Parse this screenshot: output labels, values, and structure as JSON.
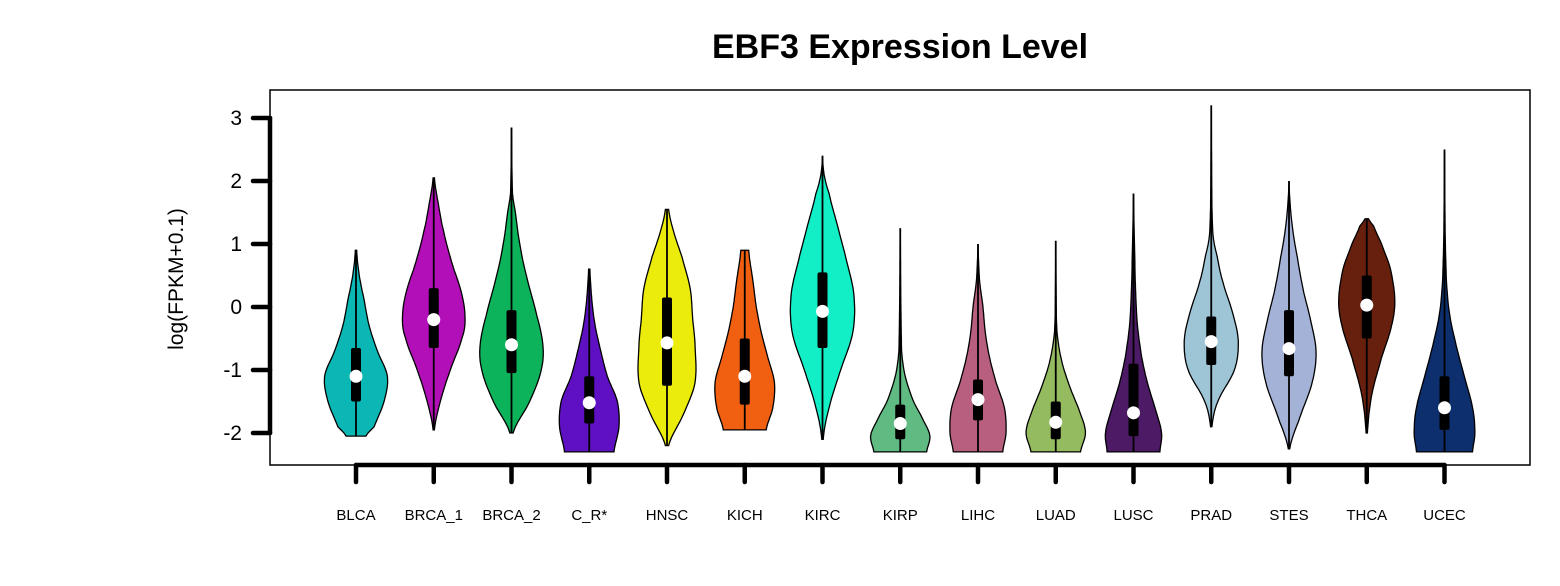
{
  "chart_data": {
    "type": "violin",
    "title": "EBF3 Expression Level",
    "xlabel": "",
    "ylabel": "log(FPKM+0.1)",
    "ylim": [
      -2.5,
      3.45
    ],
    "yticks": [
      -2,
      -1,
      0,
      1,
      2,
      3
    ],
    "grid": false,
    "legend": "none",
    "categories": [
      "BLCA",
      "BRCA_1",
      "BRCA_2",
      "C_R*",
      "HNSC",
      "KICH",
      "KIRC",
      "KIRP",
      "LIHC",
      "LUAD",
      "LUSC",
      "PRAD",
      "STES",
      "THCA",
      "UCEC"
    ],
    "series": [
      {
        "category": "BLCA",
        "color": "#0ab7b4",
        "min": -2.05,
        "max": 0.9,
        "q1": -1.5,
        "median": -1.1,
        "q3": -0.65,
        "whisker_low": -2.05,
        "whisker_high": 0.9,
        "density": [
          [
            -2.05,
            0.3
          ],
          [
            -1.9,
            0.55
          ],
          [
            -1.5,
            0.85
          ],
          [
            -1.1,
            0.95
          ],
          [
            -0.7,
            0.65
          ],
          [
            -0.3,
            0.4
          ],
          [
            0.1,
            0.25
          ],
          [
            0.5,
            0.1
          ],
          [
            0.9,
            0.02
          ]
        ]
      },
      {
        "category": "BRCA_1",
        "color": "#b30fb8",
        "min": -1.95,
        "max": 2.05,
        "q1": -0.65,
        "median": -0.2,
        "q3": 0.3,
        "whisker_low": -1.95,
        "whisker_high": 2.05,
        "density": [
          [
            -1.95,
            0.02
          ],
          [
            -1.5,
            0.2
          ],
          [
            -1.0,
            0.5
          ],
          [
            -0.5,
            0.85
          ],
          [
            -0.2,
            0.95
          ],
          [
            0.2,
            0.85
          ],
          [
            0.7,
            0.55
          ],
          [
            1.2,
            0.3
          ],
          [
            1.6,
            0.15
          ],
          [
            2.05,
            0.02
          ]
        ]
      },
      {
        "category": "BRCA_2",
        "color": "#0db35a",
        "min": -2.0,
        "max": 2.85,
        "q1": -1.05,
        "median": -0.6,
        "q3": -0.05,
        "whisker_low": -2.0,
        "whisker_high": 2.85,
        "density": [
          [
            -2.0,
            0.05
          ],
          [
            -1.5,
            0.55
          ],
          [
            -1.0,
            0.9
          ],
          [
            -0.6,
            0.95
          ],
          [
            -0.1,
            0.75
          ],
          [
            0.5,
            0.45
          ],
          [
            1.0,
            0.25
          ],
          [
            1.5,
            0.12
          ],
          [
            1.8,
            0.03
          ],
          [
            2.85,
            0.0
          ]
        ]
      },
      {
        "category": "C_R*",
        "color": "#5e10c2",
        "min": -2.3,
        "max": 0.6,
        "q1": -1.85,
        "median": -1.52,
        "q3": -1.1,
        "whisker_low": -2.3,
        "whisker_high": 0.6,
        "density": [
          [
            -2.3,
            0.75
          ],
          [
            -1.9,
            0.9
          ],
          [
            -1.5,
            0.85
          ],
          [
            -1.1,
            0.55
          ],
          [
            -0.7,
            0.35
          ],
          [
            -0.3,
            0.18
          ],
          [
            0.1,
            0.08
          ],
          [
            0.6,
            0.02
          ]
        ]
      },
      {
        "category": "HNSC",
        "color": "#ecec0c",
        "min": -2.2,
        "max": 1.55,
        "q1": -1.25,
        "median": -0.57,
        "q3": 0.15,
        "whisker_low": -2.2,
        "whisker_high": 1.55,
        "density": [
          [
            -2.2,
            0.05
          ],
          [
            -1.7,
            0.5
          ],
          [
            -1.2,
            0.85
          ],
          [
            -0.6,
            0.85
          ],
          [
            -0.2,
            0.78
          ],
          [
            0.3,
            0.7
          ],
          [
            0.8,
            0.45
          ],
          [
            1.2,
            0.2
          ],
          [
            1.55,
            0.05
          ]
        ]
      },
      {
        "category": "KICH",
        "color": "#f06010",
        "min": -1.95,
        "max": 0.9,
        "q1": -1.55,
        "median": -1.1,
        "q3": -0.5,
        "whisker_low": -1.95,
        "whisker_high": 0.9,
        "density": [
          [
            -1.95,
            0.65
          ],
          [
            -1.6,
            0.85
          ],
          [
            -1.2,
            0.9
          ],
          [
            -0.8,
            0.7
          ],
          [
            -0.4,
            0.5
          ],
          [
            0.0,
            0.35
          ],
          [
            0.4,
            0.25
          ],
          [
            0.9,
            0.12
          ]
        ]
      },
      {
        "category": "KIRC",
        "color": "#12eec6",
        "min": -2.1,
        "max": 2.4,
        "q1": -0.65,
        "median": -0.07,
        "q3": 0.55,
        "whisker_low": -2.1,
        "whisker_high": 2.4,
        "density": [
          [
            -2.1,
            0.02
          ],
          [
            -1.6,
            0.2
          ],
          [
            -1.0,
            0.55
          ],
          [
            -0.4,
            0.92
          ],
          [
            0.2,
            0.95
          ],
          [
            0.8,
            0.7
          ],
          [
            1.3,
            0.45
          ],
          [
            1.8,
            0.2
          ],
          [
            2.1,
            0.05
          ],
          [
            2.4,
            0.0
          ]
        ]
      },
      {
        "category": "KIRP",
        "color": "#5fbb82",
        "min": -2.3,
        "max": 1.25,
        "q1": -2.1,
        "median": -1.85,
        "q3": -1.55,
        "whisker_low": -2.3,
        "whisker_high": 1.25,
        "density": [
          [
            -2.3,
            0.8
          ],
          [
            -2.05,
            0.9
          ],
          [
            -1.8,
            0.7
          ],
          [
            -1.5,
            0.4
          ],
          [
            -1.1,
            0.15
          ],
          [
            -0.7,
            0.04
          ],
          [
            1.25,
            0.0
          ]
        ]
      },
      {
        "category": "LIHC",
        "color": "#b85f80",
        "min": -2.3,
        "max": 1.0,
        "q1": -1.8,
        "median": -1.47,
        "q3": -1.15,
        "whisker_low": -2.3,
        "whisker_high": 1.0,
        "density": [
          [
            -2.3,
            0.75
          ],
          [
            -2.0,
            0.85
          ],
          [
            -1.6,
            0.8
          ],
          [
            -1.2,
            0.55
          ],
          [
            -0.8,
            0.35
          ],
          [
            -0.4,
            0.22
          ],
          [
            0.0,
            0.15
          ],
          [
            0.4,
            0.05
          ],
          [
            1.0,
            0.0
          ]
        ]
      },
      {
        "category": "LUAD",
        "color": "#94bb5f",
        "min": -2.3,
        "max": 1.05,
        "q1": -2.1,
        "median": -1.83,
        "q3": -1.5,
        "whisker_low": -2.3,
        "whisker_high": 1.05,
        "density": [
          [
            -2.3,
            0.75
          ],
          [
            -2.0,
            0.9
          ],
          [
            -1.7,
            0.75
          ],
          [
            -1.3,
            0.45
          ],
          [
            -0.9,
            0.2
          ],
          [
            -0.5,
            0.06
          ],
          [
            -0.2,
            0.02
          ],
          [
            1.05,
            0.0
          ]
        ]
      },
      {
        "category": "LUSC",
        "color": "#4d1a65",
        "min": -2.3,
        "max": 1.8,
        "q1": -2.05,
        "median": -1.68,
        "q3": -0.9,
        "whisker_low": -2.3,
        "whisker_high": 1.8,
        "density": [
          [
            -2.3,
            0.8
          ],
          [
            -2.0,
            0.85
          ],
          [
            -1.6,
            0.65
          ],
          [
            -1.2,
            0.42
          ],
          [
            -0.8,
            0.25
          ],
          [
            -0.3,
            0.12
          ],
          [
            0.3,
            0.06
          ],
          [
            1.0,
            0.03
          ],
          [
            1.8,
            0.0
          ]
        ]
      },
      {
        "category": "PRAD",
        "color": "#9ec5d5",
        "min": -1.9,
        "max": 3.2,
        "q1": -0.92,
        "median": -0.55,
        "q3": -0.15,
        "whisker_low": -1.9,
        "whisker_high": 3.2,
        "density": [
          [
            -1.9,
            0.02
          ],
          [
            -1.5,
            0.2
          ],
          [
            -1.0,
            0.7
          ],
          [
            -0.55,
            0.82
          ],
          [
            -0.1,
            0.65
          ],
          [
            0.4,
            0.35
          ],
          [
            0.8,
            0.18
          ],
          [
            1.1,
            0.06
          ],
          [
            1.6,
            0.02
          ],
          [
            3.2,
            0.0
          ]
        ]
      },
      {
        "category": "STES",
        "color": "#a4b2d8",
        "min": -2.25,
        "max": 2.0,
        "q1": -1.1,
        "median": -0.66,
        "q3": -0.05,
        "whisker_low": -2.25,
        "whisker_high": 2.0,
        "density": [
          [
            -2.25,
            0.02
          ],
          [
            -1.8,
            0.3
          ],
          [
            -1.2,
            0.7
          ],
          [
            -0.7,
            0.82
          ],
          [
            -0.2,
            0.65
          ],
          [
            0.3,
            0.42
          ],
          [
            0.8,
            0.25
          ],
          [
            1.2,
            0.12
          ],
          [
            1.6,
            0.04
          ],
          [
            2.0,
            0.0
          ]
        ]
      },
      {
        "category": "THCA",
        "color": "#67200d",
        "min": -2.0,
        "max": 1.4,
        "q1": -0.5,
        "median": 0.03,
        "q3": 0.5,
        "whisker_low": -2.0,
        "whisker_high": 1.4,
        "density": [
          [
            -2.0,
            0.02
          ],
          [
            -1.4,
            0.15
          ],
          [
            -0.8,
            0.45
          ],
          [
            -0.3,
            0.75
          ],
          [
            0.1,
            0.85
          ],
          [
            0.6,
            0.72
          ],
          [
            1.0,
            0.45
          ],
          [
            1.3,
            0.2
          ],
          [
            1.4,
            0.05
          ]
        ]
      },
      {
        "category": "UCEC",
        "color": "#0d2f6e",
        "min": -2.3,
        "max": 2.5,
        "q1": -1.95,
        "median": -1.6,
        "q3": -1.1,
        "whisker_low": -2.3,
        "whisker_high": 2.5,
        "density": [
          [
            -2.3,
            0.85
          ],
          [
            -2.0,
            0.92
          ],
          [
            -1.6,
            0.85
          ],
          [
            -1.1,
            0.6
          ],
          [
            -0.6,
            0.35
          ],
          [
            -0.1,
            0.15
          ],
          [
            0.4,
            0.06
          ],
          [
            1.2,
            0.02
          ],
          [
            2.5,
            0.0
          ]
        ]
      }
    ]
  }
}
